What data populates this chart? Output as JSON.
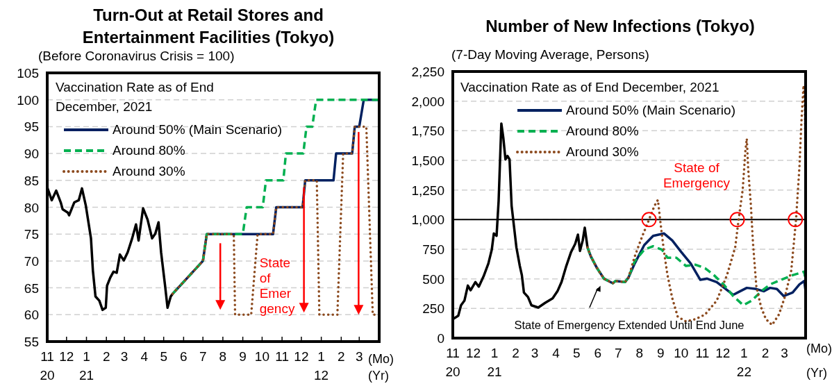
{
  "chart_data": [
    {
      "type": "line",
      "title": "Turn-Out at Retail Stores and\nEntertainment Facilities (Tokyo)",
      "subtitle": "(Before Coronavirus Crisis = 100)",
      "legend_title": "Vaccination Rate as of End\nDecember, 2021",
      "legend": "top left",
      "grid": "y",
      "xlim": [
        "2020-11-01",
        "2022-04-01"
      ],
      "xticks": [
        {
          "value": "2020-11",
          "label": "11\n20"
        },
        {
          "value": "2020-12",
          "label": "12"
        },
        {
          "value": "2021-01",
          "label": "1\n21"
        },
        {
          "value": "2021-02",
          "label": "2"
        },
        {
          "value": "2021-03",
          "label": "3"
        },
        {
          "value": "2021-04",
          "label": "4"
        },
        {
          "value": "2021-05",
          "label": "5"
        },
        {
          "value": "2021-06",
          "label": "6"
        },
        {
          "value": "2021-07",
          "label": "7"
        },
        {
          "value": "2021-08",
          "label": "8"
        },
        {
          "value": "2021-09",
          "label": "9"
        },
        {
          "value": "2021-10",
          "label": "10"
        },
        {
          "value": "2021-11",
          "label": "11"
        },
        {
          "value": "2021-12",
          "label": "12"
        },
        {
          "value": "2022-01",
          "label": "1\n12"
        },
        {
          "value": "2022-02",
          "label": "2"
        },
        {
          "value": "2022-03",
          "label": "3"
        }
      ],
      "ylim": [
        55,
        105
      ],
      "yticks": [
        55,
        60,
        65,
        70,
        75,
        80,
        85,
        90,
        95,
        100,
        105
      ],
      "annotations": [
        {
          "text": "State\nof\nEmer\ngency",
          "x": "2021-09-27",
          "y": 71
        },
        "(Mo)",
        "(Yr)"
      ],
      "series": [
        {
          "color": "#000000",
          "line_style": "solid",
          "x": [
            "2020-11-01",
            "2020-11-08",
            "2020-11-15",
            "2020-11-22",
            "2020-11-25",
            "2020-12-03",
            "2020-12-05",
            "2020-12-13",
            "2020-12-20",
            "2020-12-25",
            "2020-12-31",
            "2021-01-08",
            "2021-01-11",
            "2021-01-15",
            "2021-01-21",
            "2021-01-26",
            "2021-01-31",
            "2021-02-02",
            "2021-02-07",
            "2021-02-12",
            "2021-02-17",
            "2021-02-22",
            "2021-02-28",
            "2021-03-06",
            "2021-03-13",
            "2021-03-19",
            "2021-03-23",
            "2021-03-30",
            "2021-04-06",
            "2021-04-13",
            "2021-04-18",
            "2021-04-23",
            "2021-04-27",
            "2021-05-03",
            "2021-05-07",
            "2021-05-12",
            "2021-05-15"
          ],
          "values": [
            83.7,
            81.3,
            83.1,
            80.9,
            79.6,
            79,
            78.5,
            80.9,
            81.3,
            83.5,
            80.3,
            74.2,
            68.2,
            63.4,
            62.6,
            60.9,
            61.3,
            65.4,
            66.9,
            68,
            67.8,
            71.2,
            70.1,
            71.6,
            74.2,
            76.8,
            73.8,
            79.8,
            77.7,
            74.2,
            75.1,
            77.2,
            71.6,
            65.6,
            61.3,
            63.4,
            63.9
          ]
        },
        {
          "name": "Around 50% (Main Scenario)",
          "color": "#002060",
          "line_style": "solid",
          "x": [
            "2021-05-15",
            "2021-07-01",
            "2021-07-07",
            "2021-10-18",
            "2021-10-23",
            "2021-12-03",
            "2021-12-07",
            "2022-01-20",
            "2022-01-24",
            "2022-02-18",
            "2022-02-22",
            "2022-03-01",
            "2022-03-08",
            "2022-04-01"
          ],
          "values": [
            63.9,
            70,
            75,
            75,
            80,
            80,
            85,
            85,
            90,
            90,
            95,
            95,
            100,
            100
          ]
        },
        {
          "name": "Around 80%",
          "color": "#00b050",
          "line_style": "dashed",
          "x": [
            "2021-05-15",
            "2021-07-01",
            "2021-07-07",
            "2021-09-01",
            "2021-09-07",
            "2021-10-02",
            "2021-10-07",
            "2021-11-03",
            "2021-11-07",
            "2021-12-04",
            "2021-12-09",
            "2021-12-18",
            "2021-12-24",
            "2022-04-01"
          ],
          "values": [
            63.9,
            70,
            75,
            75,
            80,
            80,
            85,
            85,
            90,
            90,
            95,
            95,
            100,
            100
          ]
        },
        {
          "name": "Around 30%",
          "color": "#8c4a1e",
          "line_style": "dotted",
          "x": [
            "2021-05-15",
            "2021-07-01",
            "2021-07-07",
            "2021-08-18",
            "2021-08-20",
            "2021-09-14",
            "2021-09-24",
            "2021-10-18",
            "2021-10-23",
            "2021-12-03",
            "2021-12-07",
            "2021-12-25",
            "2021-12-29",
            "2022-01-26",
            "2022-02-04",
            "2022-02-18",
            "2022-02-22",
            "2022-03-12",
            "2022-03-22",
            "2022-04-01"
          ],
          "values": [
            63.9,
            70,
            75,
            75,
            60,
            60,
            75,
            75,
            80,
            80,
            85,
            85,
            60,
            60,
            90,
            90,
            95,
            95,
            60,
            60
          ]
        }
      ]
    },
    {
      "type": "line",
      "title": "Number of New Infections (Tokyo)",
      "subtitle": "(7-Day Moving Average, Persons)",
      "legend_title": "Vaccination Rate as of End December, 2021",
      "legend": "top left",
      "grid": "y",
      "xlim": [
        "2020-11-01",
        "2022-04-01"
      ],
      "xticks": [
        {
          "value": "2020-11",
          "label": "11\n20"
        },
        {
          "value": "2020-12",
          "label": "12"
        },
        {
          "value": "2021-01",
          "label": "1\n21"
        },
        {
          "value": "2021-02",
          "label": "2"
        },
        {
          "value": "2021-03",
          "label": "3"
        },
        {
          "value": "2021-04",
          "label": "4"
        },
        {
          "value": "2021-05",
          "label": "5"
        },
        {
          "value": "2021-06",
          "label": "6"
        },
        {
          "value": "2021-07",
          "label": "7"
        },
        {
          "value": "2021-08",
          "label": "8"
        },
        {
          "value": "2021-09",
          "label": "9"
        },
        {
          "value": "2021-10",
          "label": "10"
        },
        {
          "value": "2021-11",
          "label": "11"
        },
        {
          "value": "2021-12",
          "label": "12"
        },
        {
          "value": "2022-01",
          "label": "1\n22"
        },
        {
          "value": "2022-02",
          "label": "2"
        },
        {
          "value": "2022-03",
          "label": "3"
        }
      ],
      "ylim": [
        0,
        2250
      ],
      "yticks": [
        0,
        250,
        500,
        750,
        {
          "value": 1000,
          "label": "1,000"
        },
        {
          "value": 1250,
          "label": "1,250"
        },
        {
          "value": 1500,
          "label": "1,500"
        },
        {
          "value": 1750,
          "label": "1,750"
        },
        {
          "value": 2000,
          "label": "2,000"
        },
        {
          "value": 2250,
          "label": "2,250"
        }
      ],
      "ref_lines": [
        {
          "axis": "y",
          "value": 1000,
          "color": "#000000",
          "line_style": "solid"
        }
      ],
      "annotations": [
        "State of\nEmergency",
        "State of Emergency Extended Until End June",
        "(Mo)",
        "(Yr)"
      ],
      "series": [
        {
          "color": "#000000",
          "line_style": "solid",
          "x": [
            "2020-11-01",
            "2020-11-09",
            "2020-11-13",
            "2020-11-18",
            "2020-11-23",
            "2020-11-27",
            "2020-12-04",
            "2020-12-09",
            "2020-12-16",
            "2020-12-23",
            "2020-12-28",
            "2020-12-31",
            "2021-01-04",
            "2021-01-07",
            "2021-01-11",
            "2021-01-14",
            "2021-01-17",
            "2021-01-20",
            "2021-01-23",
            "2021-01-26",
            "2021-02-02",
            "2021-02-07",
            "2021-02-10",
            "2021-02-13",
            "2021-02-19",
            "2021-02-24",
            "2021-03-06",
            "2021-03-16",
            "2021-03-27",
            "2021-04-03",
            "2021-04-09",
            "2021-04-16",
            "2021-04-23",
            "2021-04-29",
            "2021-05-03",
            "2021-05-06",
            "2021-05-10",
            "2021-05-13",
            "2021-05-17"
          ],
          "values": [
            160,
            189,
            277,
            316,
            443,
            404,
            473,
            434,
            521,
            629,
            746,
            883,
            863,
            1156,
            1811,
            1684,
            1508,
            1537,
            1508,
            1117,
            766,
            609,
            531,
            385,
            346,
            277,
            258,
            297,
            336,
            395,
            473,
            609,
            727,
            795,
            873,
            736,
            824,
            932,
            766
          ]
        },
        {
          "name": "Around 50% (Main Scenario)",
          "color": "#002060",
          "line_style": "solid",
          "x": [
            "2021-05-17",
            "2021-05-22",
            "2021-05-31",
            "2021-06-10",
            "2021-06-23",
            "2021-06-27",
            "2021-07-11",
            "2021-07-16",
            "2021-07-25",
            "2021-08-08",
            "2021-08-21",
            "2021-09-06",
            "2021-09-18",
            "2021-10-01",
            "2021-10-15",
            "2021-10-29",
            "2021-11-08",
            "2021-11-22",
            "2021-12-03",
            "2021-12-16",
            "2021-12-26",
            "2022-01-05",
            "2022-01-19",
            "2022-01-30",
            "2022-02-08",
            "2022-02-18",
            "2022-02-28",
            "2022-03-13",
            "2022-03-23",
            "2022-03-30",
            "2022-04-01"
          ],
          "values": [
            766,
            688,
            590,
            502,
            463,
            482,
            473,
            512,
            629,
            785,
            863,
            883,
            824,
            727,
            629,
            492,
            502,
            473,
            424,
            365,
            395,
            424,
            414,
            395,
            424,
            414,
            355,
            385,
            453,
            482,
            395
          ]
        },
        {
          "name": "Around 80%",
          "color": "#00b050",
          "line_style": "dashed",
          "x": [
            "2021-05-17",
            "2021-05-22",
            "2021-05-31",
            "2021-06-10",
            "2021-06-23",
            "2021-06-27",
            "2021-07-11",
            "2021-07-16",
            "2021-07-25",
            "2021-08-08",
            "2021-08-21",
            "2021-09-03",
            "2021-09-11",
            "2021-09-24",
            "2021-10-08",
            "2021-10-22",
            "2021-11-05",
            "2021-11-18",
            "2021-12-02",
            "2021-12-16",
            "2021-12-31",
            "2022-01-12",
            "2022-01-26",
            "2022-02-08",
            "2022-02-24",
            "2022-03-13",
            "2022-03-30",
            "2022-04-01"
          ],
          "values": [
            766,
            688,
            590,
            502,
            463,
            482,
            473,
            512,
            648,
            746,
            775,
            746,
            678,
            678,
            609,
            619,
            590,
            531,
            453,
            355,
            277,
            316,
            395,
            453,
            492,
            531,
            561,
            473
          ]
        },
        {
          "name": "Around 30%",
          "color": "#8c4a1e",
          "line_style": "dotted",
          "x": [
            "2021-05-17",
            "2021-05-22",
            "2021-05-31",
            "2021-06-10",
            "2021-06-23",
            "2021-06-27",
            "2021-07-11",
            "2021-07-16",
            "2021-07-25",
            "2021-08-04",
            "2021-08-15",
            "2021-08-23",
            "2021-08-28",
            "2021-09-01",
            "2021-09-06",
            "2021-09-11",
            "2021-09-18",
            "2021-09-26",
            "2021-10-08",
            "2021-10-22",
            "2021-11-05",
            "2021-11-22",
            "2021-12-07",
            "2021-12-19",
            "2021-12-24",
            "2021-12-30",
            "2022-01-03",
            "2022-01-05",
            "2022-01-07",
            "2022-01-11",
            "2022-01-14",
            "2022-01-19",
            "2022-01-26",
            "2022-02-02",
            "2022-02-11",
            "2022-02-21",
            "2022-03-02",
            "2022-03-11",
            "2022-03-18",
            "2022-03-23",
            "2022-03-26",
            "2022-03-29",
            "2022-03-31",
            "2022-04-01"
          ],
          "values": [
            766,
            688,
            590,
            502,
            463,
            482,
            473,
            512,
            688,
            844,
            1000,
            1117,
            1166,
            961,
            727,
            531,
            336,
            180,
            141,
            160,
            199,
            316,
            531,
            766,
            1000,
            1254,
            1586,
            1684,
            1430,
            1117,
            805,
            434,
            258,
            160,
            111,
            199,
            355,
            570,
            1000,
            1449,
            1840,
            2133,
            1938,
            1469
          ]
        }
      ]
    }
  ]
}
